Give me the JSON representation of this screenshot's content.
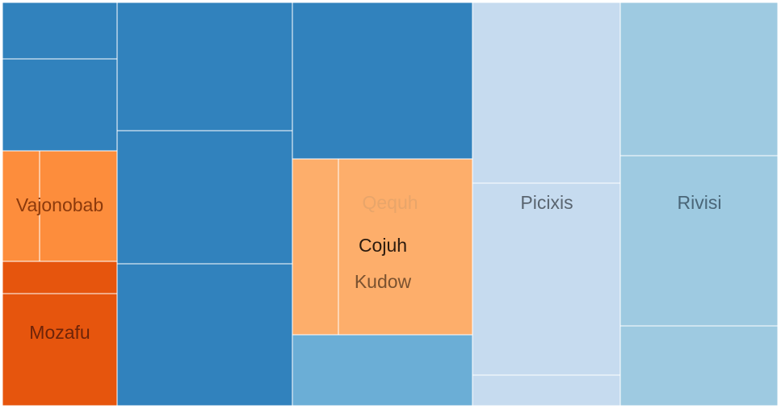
{
  "chart_data": {
    "type": "treemap",
    "colors": {
      "blue": "#3182bd",
      "blue_mid": "#6baed6",
      "blue_light": "#9ecae1",
      "blue_pale": "#c6dbef",
      "orange_dark": "#e6550d",
      "orange": "#fd8d3c",
      "orange_light": "#fdae6b",
      "border": "#ffffff"
    },
    "labels": [
      {
        "text": "Vajonobab",
        "color": "#8c3a0c"
      },
      {
        "text": "Mozafu",
        "color": "#6e2409"
      },
      {
        "text": "Qequh",
        "color": "#e8a56a"
      },
      {
        "text": "Cojuh",
        "color": "#2a1a0e"
      },
      {
        "text": "Kudow",
        "color": "#7a5230"
      },
      {
        "text": "Picixis",
        "color": "#5a6570"
      },
      {
        "text": "Rivisi",
        "color": "#4a6678"
      }
    ]
  }
}
